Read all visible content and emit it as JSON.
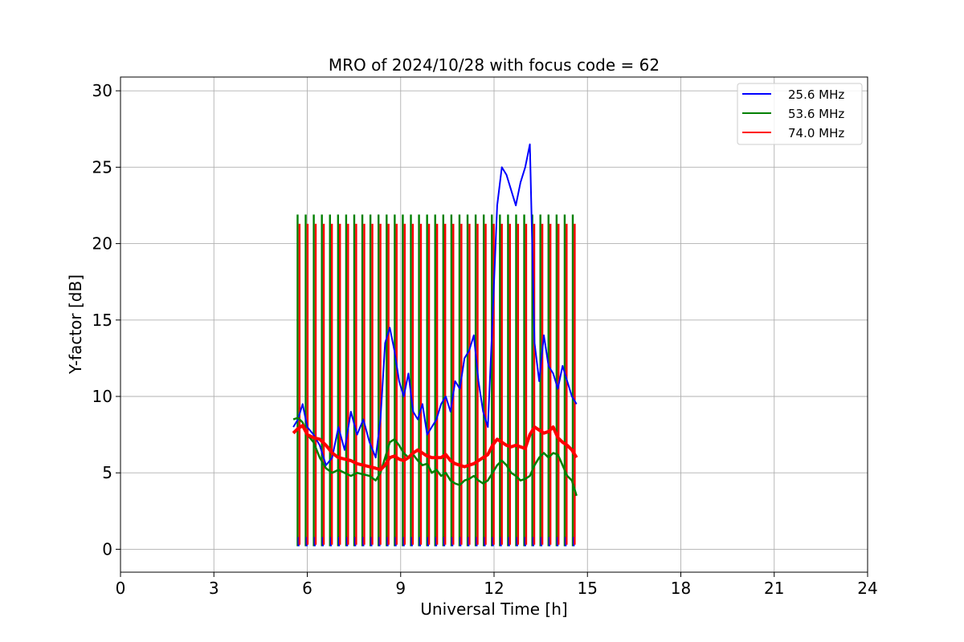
{
  "chart_data": {
    "type": "line",
    "title": "MRO of 2024/10/28 with focus code = 62",
    "xlabel": "Universal Time [h]",
    "ylabel": "Y-factor [dB]",
    "xlim": [
      0,
      24
    ],
    "ylim": [
      -1.5,
      30.9
    ],
    "xticks": [
      0,
      3,
      6,
      9,
      12,
      15,
      18,
      21,
      24
    ],
    "yticks": [
      0,
      5,
      10,
      15,
      20,
      25,
      30
    ],
    "grid": true,
    "legend_position": "top-right",
    "calibration_pulses": {
      "description_note": "periodic vertical calibration sweeps",
      "times": [
        5.72,
        5.98,
        6.24,
        6.5,
        6.76,
        7.02,
        7.28,
        7.54,
        7.8,
        8.06,
        8.32,
        8.58,
        8.84,
        9.1,
        9.36,
        9.62,
        9.88,
        10.14,
        10.4,
        10.66,
        10.92,
        11.18,
        11.44,
        11.7,
        11.96,
        12.22,
        12.48,
        12.74,
        13.0,
        13.26,
        13.52,
        13.78,
        14.04,
        14.3,
        14.56
      ]
    },
    "series": [
      {
        "name": "25.6 MHz",
        "color": "#0000ff",
        "x": [
          5.55,
          5.7,
          5.85,
          6.0,
          6.2,
          6.4,
          6.6,
          6.8,
          7.0,
          7.2,
          7.4,
          7.6,
          7.8,
          8.0,
          8.2,
          8.35,
          8.5,
          8.65,
          8.8,
          8.95,
          9.1,
          9.25,
          9.4,
          9.55,
          9.7,
          9.85,
          10.0,
          10.15,
          10.3,
          10.45,
          10.6,
          10.75,
          10.9,
          11.05,
          11.2,
          11.35,
          11.5,
          11.65,
          11.8,
          11.95,
          12.1,
          12.25,
          12.4,
          12.55,
          12.7,
          12.85,
          13.0,
          13.15,
          13.3,
          13.45,
          13.6,
          13.75,
          13.9,
          14.05,
          14.2,
          14.35,
          14.5,
          14.65
        ],
        "values": [
          8.0,
          8.5,
          9.5,
          8.0,
          7.5,
          6.8,
          5.5,
          6.0,
          8.0,
          6.5,
          9.0,
          7.5,
          8.5,
          7.0,
          6.0,
          8.5,
          13.5,
          14.5,
          13.0,
          11.0,
          10.0,
          11.5,
          9.0,
          8.5,
          9.5,
          7.5,
          8.0,
          8.5,
          9.5,
          10.0,
          9.0,
          11.0,
          10.5,
          12.5,
          13.0,
          14.0,
          11.0,
          9.0,
          8.0,
          15.0,
          22.5,
          25.0,
          24.5,
          23.5,
          22.5,
          24.0,
          25.0,
          26.5,
          13.5,
          11.0,
          14.0,
          12.0,
          11.5,
          10.5,
          12.0,
          11.0,
          10.0,
          9.5
        ]
      },
      {
        "name": "53.6 MHz",
        "color": "#008000",
        "x": [
          5.55,
          5.7,
          5.85,
          6.0,
          6.2,
          6.4,
          6.6,
          6.8,
          7.0,
          7.2,
          7.4,
          7.6,
          7.8,
          8.0,
          8.2,
          8.35,
          8.5,
          8.65,
          8.8,
          8.95,
          9.1,
          9.25,
          9.4,
          9.55,
          9.7,
          9.85,
          10.0,
          10.15,
          10.3,
          10.45,
          10.6,
          10.75,
          10.9,
          11.05,
          11.2,
          11.35,
          11.5,
          11.65,
          11.8,
          11.95,
          12.1,
          12.25,
          12.4,
          12.55,
          12.7,
          12.85,
          13.0,
          13.15,
          13.3,
          13.45,
          13.6,
          13.75,
          13.9,
          14.05,
          14.2,
          14.35,
          14.5,
          14.65
        ],
        "values": [
          8.5,
          8.6,
          8.3,
          7.5,
          7.0,
          6.0,
          5.3,
          5.0,
          5.2,
          5.0,
          4.8,
          5.0,
          4.9,
          4.8,
          4.5,
          5.0,
          6.0,
          7.0,
          7.2,
          6.8,
          6.3,
          6.0,
          6.2,
          5.8,
          5.5,
          5.6,
          5.0,
          5.2,
          4.8,
          5.0,
          4.5,
          4.3,
          4.2,
          4.5,
          4.6,
          4.8,
          4.5,
          4.3,
          4.5,
          5.0,
          5.5,
          5.8,
          5.5,
          5.0,
          4.8,
          4.5,
          4.6,
          4.8,
          5.5,
          6.0,
          6.3,
          6.0,
          6.3,
          6.2,
          5.5,
          4.8,
          4.5,
          3.5
        ]
      },
      {
        "name": "74.0 MHz",
        "color": "#ff0000",
        "x": [
          5.55,
          5.7,
          5.85,
          6.0,
          6.2,
          6.4,
          6.6,
          6.8,
          7.0,
          7.2,
          7.4,
          7.6,
          7.8,
          8.0,
          8.2,
          8.35,
          8.5,
          8.65,
          8.8,
          8.95,
          9.1,
          9.25,
          9.4,
          9.55,
          9.7,
          9.85,
          10.0,
          10.15,
          10.3,
          10.45,
          10.6,
          10.75,
          10.9,
          11.05,
          11.2,
          11.35,
          11.5,
          11.65,
          11.8,
          11.95,
          12.1,
          12.25,
          12.4,
          12.55,
          12.7,
          12.85,
          13.0,
          13.15,
          13.3,
          13.45,
          13.6,
          13.75,
          13.9,
          14.05,
          14.2,
          14.35,
          14.5,
          14.65
        ],
        "values": [
          7.6,
          7.9,
          8.1,
          7.5,
          7.3,
          7.2,
          6.8,
          6.3,
          6.0,
          5.9,
          5.8,
          5.6,
          5.5,
          5.4,
          5.3,
          5.2,
          5.5,
          6.0,
          6.1,
          5.9,
          5.8,
          6.0,
          6.3,
          6.5,
          6.3,
          6.1,
          6.0,
          6.0,
          6.0,
          6.2,
          5.8,
          5.6,
          5.5,
          5.4,
          5.5,
          5.6,
          5.8,
          6.0,
          6.2,
          6.8,
          7.2,
          7.0,
          6.8,
          6.7,
          6.8,
          6.7,
          6.6,
          7.5,
          8.0,
          7.8,
          7.6,
          7.7,
          8.0,
          7.3,
          7.0,
          6.8,
          6.5,
          6.0
        ]
      }
    ]
  }
}
